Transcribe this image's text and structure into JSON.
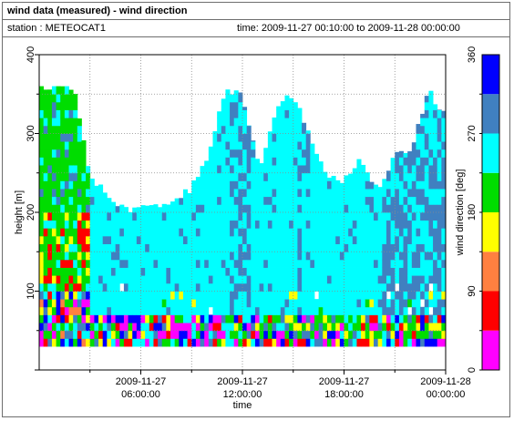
{
  "header": {
    "title": "wind data (measured) - wind direction",
    "station": "station : METEOCAT1",
    "timespan": "time: 2009-11-27 00:10:00 to 2009-11-28 00:00:00"
  },
  "chart_data": {
    "type": "heatmap",
    "title": "wind data (measured) - wind direction",
    "xlabel": "time",
    "ylabel": "height [m]",
    "colorbar_label": "wind direction [deg]",
    "x_start": "2009-11-27 00:10:00",
    "x_end": "2009-11-28 00:00:00",
    "xlim_hours": [
      0,
      24
    ],
    "xticks": [
      {
        "hour": 6,
        "label1": "2009-11-27",
        "label2": "06:00:00"
      },
      {
        "hour": 12,
        "label1": "2009-11-27",
        "label2": "12:00:00"
      },
      {
        "hour": 18,
        "label1": "2009-11-27",
        "label2": "18:00:00"
      },
      {
        "hour": 24,
        "label1": "2009-11-28",
        "label2": "00:00:00"
      }
    ],
    "ylim": [
      0,
      400
    ],
    "yticks": [
      100,
      200,
      300,
      400
    ],
    "colorbar": {
      "range": [
        0,
        360
      ],
      "ticks": [
        0,
        90,
        180,
        270,
        360
      ],
      "bands": [
        {
          "from": 0,
          "to": 45,
          "color": "#ff00ff"
        },
        {
          "from": 45,
          "to": 90,
          "color": "#ff0000"
        },
        {
          "from": 90,
          "to": 135,
          "color": "#ff8040"
        },
        {
          "from": 135,
          "to": 180,
          "color": "#ffff00"
        },
        {
          "from": 180,
          "to": 225,
          "color": "#00dd00"
        },
        {
          "from": 225,
          "to": 270,
          "color": "#00ffff"
        },
        {
          "from": 270,
          "to": 315,
          "color": "#4080c0"
        },
        {
          "from": 315,
          "to": 360,
          "color": "#0000ff"
        }
      ]
    },
    "data_height_range_m": [
      30,
      360
    ],
    "data_note": "Dominant direction ~225-270 deg (cyan) above ~100 m; mixed directions (magenta/red/yellow/green/blue) in the lowest levels and early hours.",
    "data_top_profile": [
      {
        "hour": 0,
        "top_m": 360
      },
      {
        "hour": 1,
        "top_m": 360
      },
      {
        "hour": 2,
        "top_m": 360
      },
      {
        "hour": 3,
        "top_m": 245
      },
      {
        "hour": 4,
        "top_m": 225
      },
      {
        "hour": 5,
        "top_m": 205
      },
      {
        "hour": 6,
        "top_m": 205
      },
      {
        "hour": 7,
        "top_m": 210
      },
      {
        "hour": 8,
        "top_m": 215
      },
      {
        "hour": 9,
        "top_m": 230
      },
      {
        "hour": 10,
        "top_m": 275
      },
      {
        "hour": 11,
        "top_m": 355
      },
      {
        "hour": 12,
        "top_m": 350
      },
      {
        "hour": 13,
        "top_m": 255
      },
      {
        "hour": 14,
        "top_m": 335
      },
      {
        "hour": 15,
        "top_m": 350
      },
      {
        "hour": 16,
        "top_m": 295
      },
      {
        "hour": 17,
        "top_m": 245
      },
      {
        "hour": 18,
        "top_m": 240
      },
      {
        "hour": 19,
        "top_m": 270
      },
      {
        "hour": 20,
        "top_m": 225
      },
      {
        "hour": 21,
        "top_m": 275
      },
      {
        "hour": 22,
        "top_m": 280
      },
      {
        "hour": 23,
        "top_m": 355
      },
      {
        "hour": 24,
        "top_m": 320
      }
    ]
  }
}
